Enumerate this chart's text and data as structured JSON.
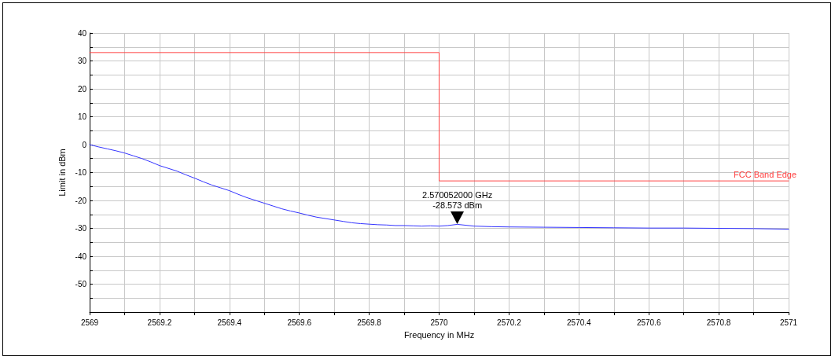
{
  "chart_data": {
    "type": "line",
    "xlabel": "Frequency in MHz",
    "ylabel": "Limit in dBm",
    "xlim": [
      2569,
      2571
    ],
    "xticks": [
      2569,
      {
        "value": 2569.1,
        "label": null
      },
      2569.2,
      {
        "value": 2569.3,
        "label": null
      },
      2569.4,
      {
        "value": 2569.5,
        "label": null
      },
      2569.6,
      {
        "value": 2569.7,
        "label": null
      },
      2569.8,
      {
        "value": 2569.9,
        "label": null
      },
      2570,
      {
        "value": 2570.1,
        "label": null
      },
      2570.2,
      {
        "value": 2570.3,
        "label": null
      },
      2570.4,
      {
        "value": 2570.5,
        "label": null
      },
      2570.6,
      {
        "value": 2570.7,
        "label": null
      },
      2570.8,
      {
        "value": 2570.9,
        "label": null
      },
      2571
    ],
    "ylim": [
      -60,
      40
    ],
    "yticks": [
      {
        "value": -60,
        "label": null
      },
      {
        "value": -55,
        "label": null
      },
      -50,
      {
        "value": -45,
        "label": null
      },
      -40,
      {
        "value": -35,
        "label": null
      },
      -30,
      {
        "value": -25,
        "label": null
      },
      -20,
      {
        "value": -15,
        "label": null
      },
      -10,
      {
        "value": -5,
        "label": null
      },
      0,
      {
        "value": 5,
        "label": null
      },
      10,
      {
        "value": 15,
        "label": null
      },
      20,
      {
        "value": 25,
        "label": null
      },
      30,
      {
        "value": 35,
        "label": null
      },
      40
    ],
    "grid": true,
    "legend": false,
    "marker": "none",
    "line_style": "solid",
    "series": [
      {
        "name": "FCC Band Edge",
        "type": "step",
        "color": "#ff4040",
        "x": [
          2569,
          2570,
          2571
        ],
        "values": [
          33,
          -13,
          -13
        ]
      },
      {
        "color": "#3333ff",
        "x": [
          2569,
          2569.025,
          2569.05,
          2569.075,
          2569.1,
          2569.125,
          2569.15,
          2569.175,
          2569.2,
          2569.225,
          2569.25,
          2569.275,
          2569.3,
          2569.325,
          2569.35,
          2569.375,
          2569.4,
          2569.425,
          2569.45,
          2569.475,
          2569.5,
          2569.525,
          2569.55,
          2569.575,
          2569.6,
          2569.625,
          2569.65,
          2569.675,
          2569.7,
          2569.725,
          2569.75,
          2569.775,
          2569.8,
          2569.825,
          2569.85,
          2569.875,
          2569.9,
          2569.925,
          2569.95,
          2569.975,
          2570,
          2570.025,
          2570.052,
          2570.1,
          2570.15,
          2570.2,
          2570.3,
          2570.4,
          2570.5,
          2570.6,
          2570.7,
          2570.8,
          2570.9,
          2571
        ],
        "values": [
          0,
          -0.8,
          -1.5,
          -2.2,
          -3,
          -4,
          -5,
          -6.2,
          -7.5,
          -8.5,
          -9.5,
          -10.8,
          -12,
          -13.3,
          -14.5,
          -15.5,
          -16.5,
          -17.8,
          -19,
          -20,
          -21,
          -22,
          -23,
          -23.8,
          -24.5,
          -25.3,
          -26,
          -26.5,
          -27,
          -27.5,
          -28,
          -28.3,
          -28.5,
          -28.7,
          -28.8,
          -29,
          -29,
          -29.1,
          -29.2,
          -29.1,
          -29.2,
          -29,
          -28.573,
          -29.2,
          -29.4,
          -29.5,
          -29.6,
          -29.7,
          -29.8,
          -29.9,
          -29.9,
          -30,
          -30.1,
          -30.3
        ]
      }
    ],
    "annotations": [
      {
        "text": "2.570052000 GHz\n-28.573 dBm",
        "x": 2570.052,
        "y": -28.573
      }
    ]
  }
}
